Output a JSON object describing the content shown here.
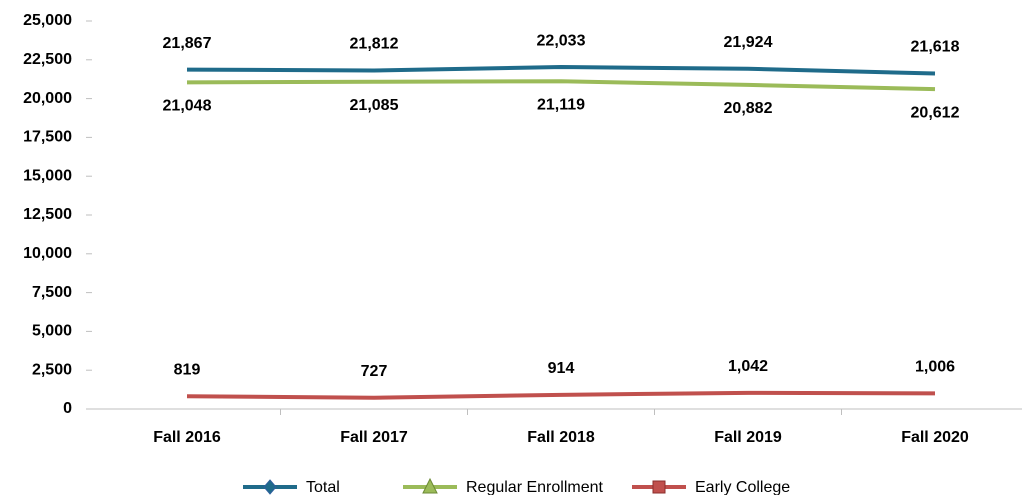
{
  "chart_data": {
    "type": "line",
    "categories": [
      "Fall 2016",
      "Fall 2017",
      "Fall 2018",
      "Fall 2019",
      "Fall 2020"
    ],
    "series": [
      {
        "name": "Total",
        "color": "#1f6b8a",
        "marker": "diamond",
        "values": [
          21867,
          21812,
          22033,
          21924,
          21618
        ],
        "value_labels": [
          "21,867",
          "21,812",
          "22,033",
          "21,924",
          "21,618"
        ]
      },
      {
        "name": "Regular Enrollment",
        "color": "#9bbb59",
        "marker": "triangle",
        "values": [
          21048,
          21085,
          21119,
          20882,
          20612
        ],
        "value_labels": [
          "21,048",
          "21,085",
          "21,119",
          "20,882",
          "20,612"
        ]
      },
      {
        "name": "Early College",
        "color": "#c0504d",
        "marker": "square",
        "values": [
          819,
          727,
          914,
          1042,
          1006
        ],
        "value_labels": [
          "819",
          "727",
          "914",
          "1,042",
          "1,006"
        ]
      }
    ],
    "ylim": [
      0,
      25000
    ],
    "yticks": [
      0,
      {
        "value": 2500,
        "label": "2,500"
      },
      {
        "value": 5000,
        "label": "5,000"
      },
      {
        "value": 7500,
        "label": "7,500"
      },
      {
        "value": 10000,
        "label": "10,000"
      },
      {
        "value": 12500,
        "label": "12,500"
      },
      {
        "value": 15000,
        "label": "15,000"
      },
      {
        "value": 17500,
        "label": "17,500"
      },
      {
        "value": 20000,
        "label": "20,000"
      },
      {
        "value": 22500,
        "label": "22,500"
      },
      {
        "value": 25000,
        "label": "25,000"
      }
    ],
    "grid": false,
    "legend": "bottom"
  }
}
